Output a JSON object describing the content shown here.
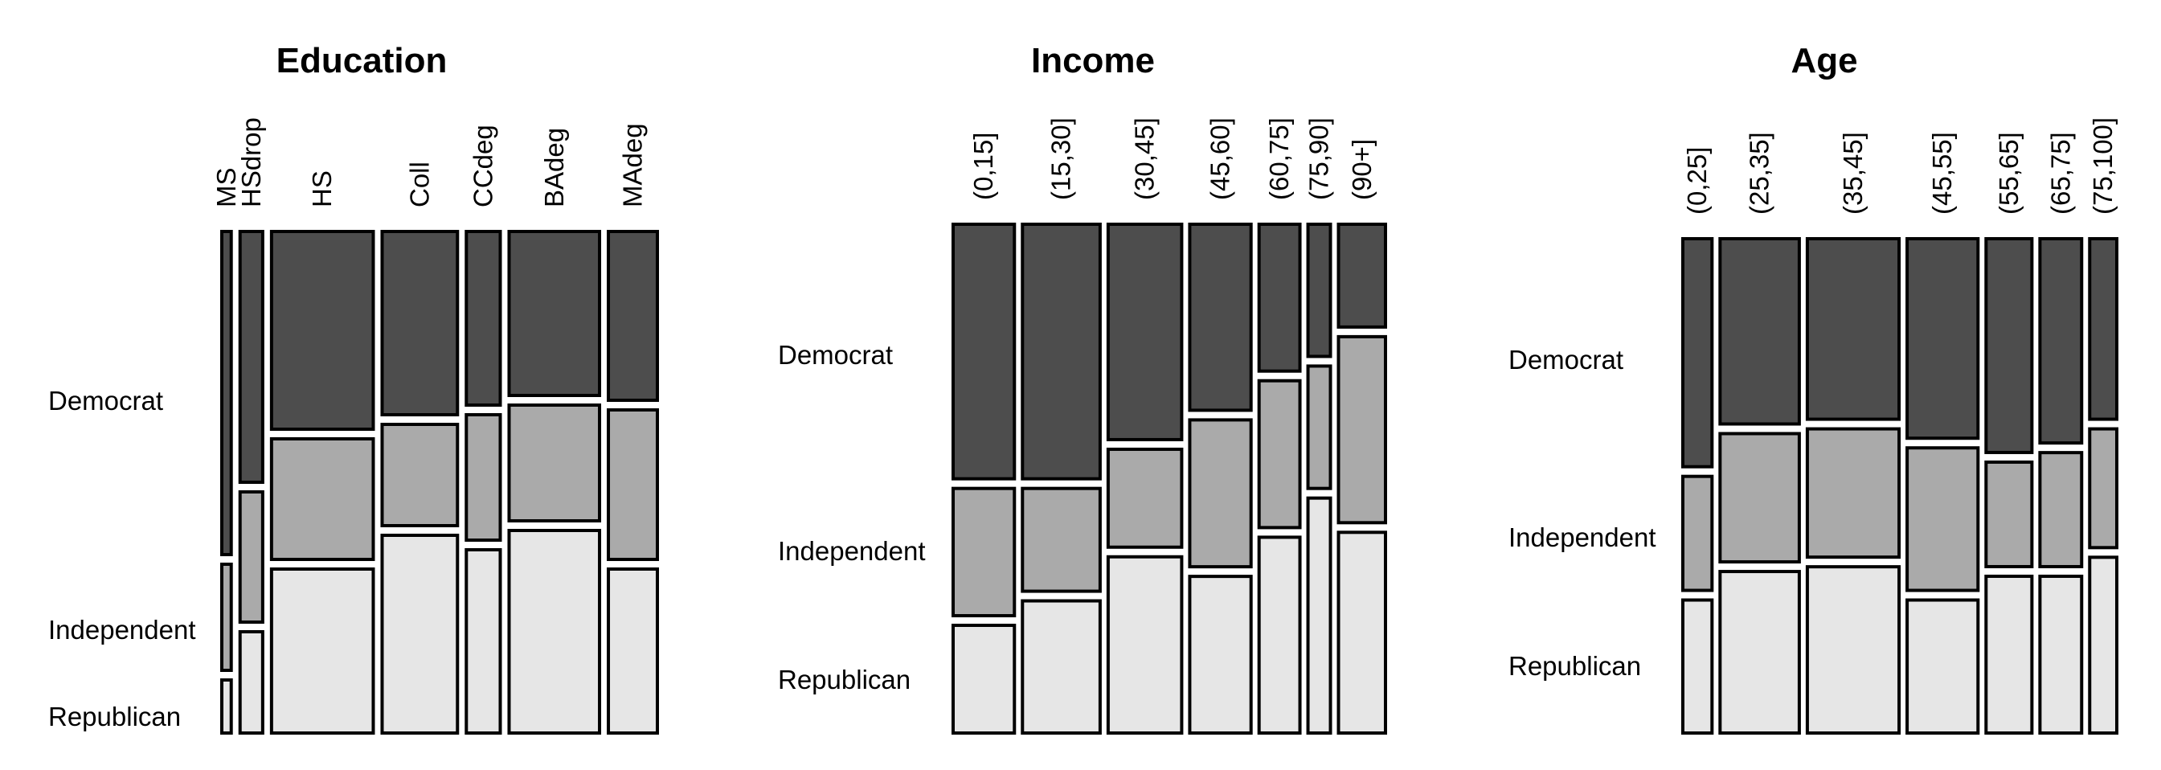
{
  "chart_data": [
    {
      "type": "mosaic",
      "title": "Education",
      "row_labels": [
        "Democrat",
        "Independent",
        "Republican"
      ],
      "columns": [
        {
          "label": "MS",
          "width_share": 0.025,
          "shares": [
            0.67,
            0.22,
            0.11
          ]
        },
        {
          "label": "HSdrop",
          "width_share": 0.06,
          "shares": [
            0.52,
            0.27,
            0.21
          ]
        },
        {
          "label": "HS",
          "width_share": 0.27,
          "shares": [
            0.41,
            0.25,
            0.34
          ]
        },
        {
          "label": "Coll",
          "width_share": 0.2,
          "shares": [
            0.38,
            0.21,
            0.41
          ]
        },
        {
          "label": "CCdeg",
          "width_share": 0.09,
          "shares": [
            0.36,
            0.26,
            0.38
          ]
        },
        {
          "label": "BAdeg",
          "width_share": 0.24,
          "shares": [
            0.34,
            0.24,
            0.42
          ]
        },
        {
          "label": "MAdeg",
          "width_share": 0.13,
          "shares": [
            0.35,
            0.31,
            0.34
          ]
        }
      ],
      "colors": [
        "#4d4d4d",
        "#aaaaaa",
        "#e6e6e6"
      ]
    },
    {
      "type": "mosaic",
      "title": "Income",
      "row_labels": [
        "Democrat",
        "Independent",
        "Republican"
      ],
      "columns": [
        {
          "label": "(0,15]",
          "width_share": 0.15,
          "shares": [
            0.52,
            0.26,
            0.22
          ]
        },
        {
          "label": "(15,30]",
          "width_share": 0.19,
          "shares": [
            0.52,
            0.21,
            0.27
          ]
        },
        {
          "label": "(30,45]",
          "width_share": 0.18,
          "shares": [
            0.44,
            0.2,
            0.36
          ]
        },
        {
          "label": "(45,60]",
          "width_share": 0.15,
          "shares": [
            0.38,
            0.3,
            0.32
          ]
        },
        {
          "label": "(60,75]",
          "width_share": 0.1,
          "shares": [
            0.3,
            0.3,
            0.4
          ]
        },
        {
          "label": "(75,90]",
          "width_share": 0.055,
          "shares": [
            0.27,
            0.25,
            0.48
          ]
        },
        {
          "label": "(90+]",
          "width_share": 0.115,
          "shares": [
            0.21,
            0.38,
            0.41
          ]
        }
      ],
      "colors": [
        "#4d4d4d",
        "#aaaaaa",
        "#e6e6e6"
      ]
    },
    {
      "type": "mosaic",
      "title": "Age",
      "row_labels": [
        "Democrat",
        "Independent",
        "Republican"
      ],
      "columns": [
        {
          "label": "(0,25]",
          "width_share": 0.07,
          "shares": [
            0.48,
            0.24,
            0.28
          ]
        },
        {
          "label": "(25,35]",
          "width_share": 0.19,
          "shares": [
            0.39,
            0.27,
            0.34
          ]
        },
        {
          "label": "(35,45]",
          "width_share": 0.22,
          "shares": [
            0.38,
            0.27,
            0.35
          ]
        },
        {
          "label": "(45,55]",
          "width_share": 0.17,
          "shares": [
            0.42,
            0.3,
            0.28
          ]
        },
        {
          "label": "(55,65]",
          "width_share": 0.11,
          "shares": [
            0.45,
            0.22,
            0.33
          ]
        },
        {
          "label": "(65,75]",
          "width_share": 0.1,
          "shares": [
            0.43,
            0.24,
            0.33
          ]
        },
        {
          "label": "(75,100]",
          "width_share": 0.065,
          "shares": [
            0.38,
            0.25,
            0.37
          ]
        }
      ],
      "colors": [
        "#4d4d4d",
        "#aaaaaa",
        "#e6e6e6"
      ]
    }
  ]
}
